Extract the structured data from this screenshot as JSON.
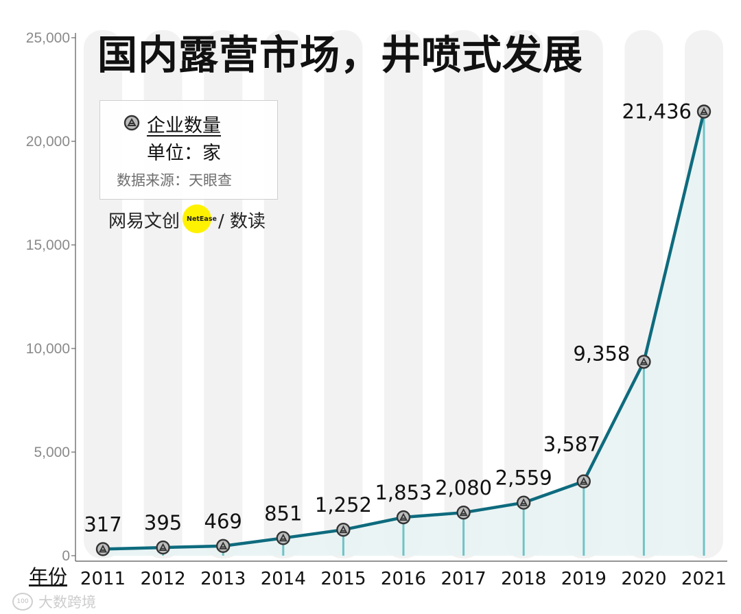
{
  "chart_data": {
    "type": "line",
    "title": "国内露营市场，井喷式发展",
    "categories": [
      "2011",
      "2012",
      "2013",
      "2014",
      "2015",
      "2016",
      "2017",
      "2018",
      "2019",
      "2020",
      "2021"
    ],
    "series": [
      {
        "name": "企业数量",
        "values": [
          317,
          395,
          469,
          851,
          1252,
          1853,
          2080,
          2559,
          3587,
          9358,
          21436
        ],
        "labels": [
          "317",
          "395",
          "469",
          "851",
          "1,252",
          "1,853",
          "2,080",
          "2,559",
          "3,587",
          "9,358",
          "21,436"
        ]
      }
    ],
    "xlabel": "年份",
    "ylabel": "",
    "ylim": [
      0,
      25000
    ],
    "yticks": [
      0,
      5000,
      10000,
      15000,
      20000,
      25000
    ],
    "ytick_labels": [
      "0",
      "5,000",
      "10,000",
      "15,000",
      "20,000",
      "25,000"
    ],
    "grid": false,
    "legend_position": "top-left",
    "colors": {
      "line": "#0e6b7e",
      "drop_line": "#6fc3c7",
      "area": "#e8f3f3",
      "stripe": "#f2f2f2",
      "marker_fill": "#bdbdbd",
      "marker_stroke": "#333333",
      "tick_text": "#8a8a8a",
      "label_text": "#111111"
    }
  },
  "legend": {
    "series_label": "企业数量",
    "unit": "单位：家",
    "source": "数据来源：天眼查"
  },
  "brand": {
    "left": "网易文创",
    "mid": "NetEase",
    "right": "/ 数读"
  },
  "watermark": {
    "logo": "100",
    "text": "大数跨境"
  }
}
